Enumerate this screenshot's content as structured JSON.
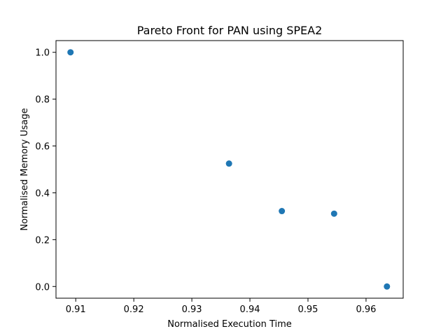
{
  "chart_data": {
    "type": "scatter",
    "title": "Pareto Front for PAN using SPEA2",
    "xlabel": "Normalised Execution Time",
    "ylabel": "Normalised Memory Usage",
    "xlim": [
      0.9066,
      0.9664
    ],
    "ylim": [
      -0.05,
      1.05
    ],
    "xticks": [
      0.91,
      0.92,
      0.93,
      0.94,
      0.95,
      0.96
    ],
    "xtick_labels": [
      "0.91",
      "0.92",
      "0.93",
      "0.94",
      "0.95",
      "0.96"
    ],
    "yticks": [
      0.0,
      0.2,
      0.4,
      0.6,
      0.8,
      1.0
    ],
    "ytick_labels": [
      "0.0",
      "0.2",
      "0.4",
      "0.6",
      "0.8",
      "1.0"
    ],
    "grid": false,
    "series": [
      {
        "color": "#1f77b4",
        "points": [
          {
            "x": 0.9091,
            "y": 1.0
          },
          {
            "x": 0.9364,
            "y": 0.525
          },
          {
            "x": 0.9455,
            "y": 0.322
          },
          {
            "x": 0.9545,
            "y": 0.311
          },
          {
            "x": 0.9636,
            "y": 0.0
          }
        ]
      }
    ]
  }
}
